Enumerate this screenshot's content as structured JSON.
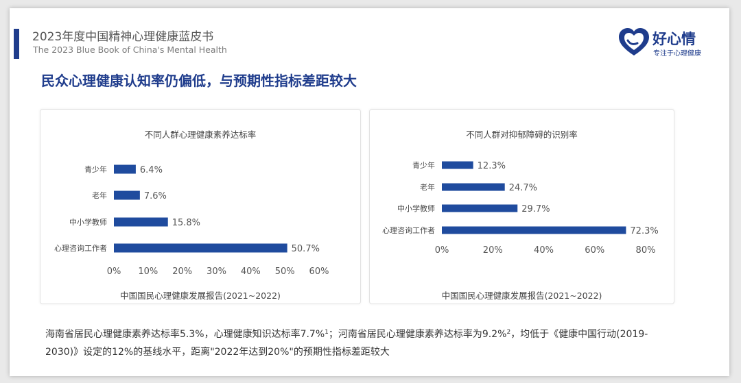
{
  "header": {
    "title": "2023年度中国精神心理健康蓝皮书",
    "subtitle": "The 2023 Blue Book of China's Mental Health"
  },
  "logo": {
    "name": "好心情",
    "tagline": "专注于心理健康"
  },
  "headline": "民众心理健康认知率仍偏低，与预期性指标差距较大",
  "colors": {
    "bar": "#1f4b9e",
    "accent": "#1f3c8c"
  },
  "chart_data": [
    {
      "type": "bar",
      "orientation": "horizontal",
      "title": "不同人群心理健康素养达标率",
      "categories": [
        "青少年",
        "老年",
        "中小学教师",
        "心理咨询工作者"
      ],
      "values": [
        6.4,
        7.6,
        15.8,
        50.7
      ],
      "value_labels": [
        "6.4%",
        "7.6%",
        "15.8%",
        "50.7%"
      ],
      "xlim": [
        0,
        60
      ],
      "xticks": [
        "0%",
        "10%",
        "20%",
        "30%",
        "40%",
        "50%",
        "60%"
      ],
      "xlabel": "中国国民心理健康发展报告(2021~2022)",
      "ylabel": "",
      "grid": false
    },
    {
      "type": "bar",
      "orientation": "horizontal",
      "title": "不同人群对抑郁障碍的识别率",
      "categories": [
        "青少年",
        "老年",
        "中小学教师",
        "心理咨询工作者"
      ],
      "values": [
        12.3,
        24.7,
        29.7,
        72.3
      ],
      "value_labels": [
        "12.3%",
        "24.7%",
        "29.7%",
        "72.3%"
      ],
      "xlim": [
        0,
        80
      ],
      "xticks": [
        "0%",
        "20%",
        "40%",
        "60%",
        "80%"
      ],
      "xlabel": "中国国民心理健康发展报告(2021~2022)",
      "ylabel": "",
      "grid": false
    }
  ],
  "footnote": {
    "line1_a": "海南省居民心理健康素养达标率5.3%，心理健康知识达标率7.7%",
    "sup1": "1",
    "line1_b": "；河南省居民心理健康素养达标率为9.2%",
    "sup2": "2",
    "line1_c": "，均低于《健康中国行动(2019-",
    "line2": "2030)》设定的12%的基线水平，距离\"2022年达到20%\"的预期性指标差距较大"
  }
}
